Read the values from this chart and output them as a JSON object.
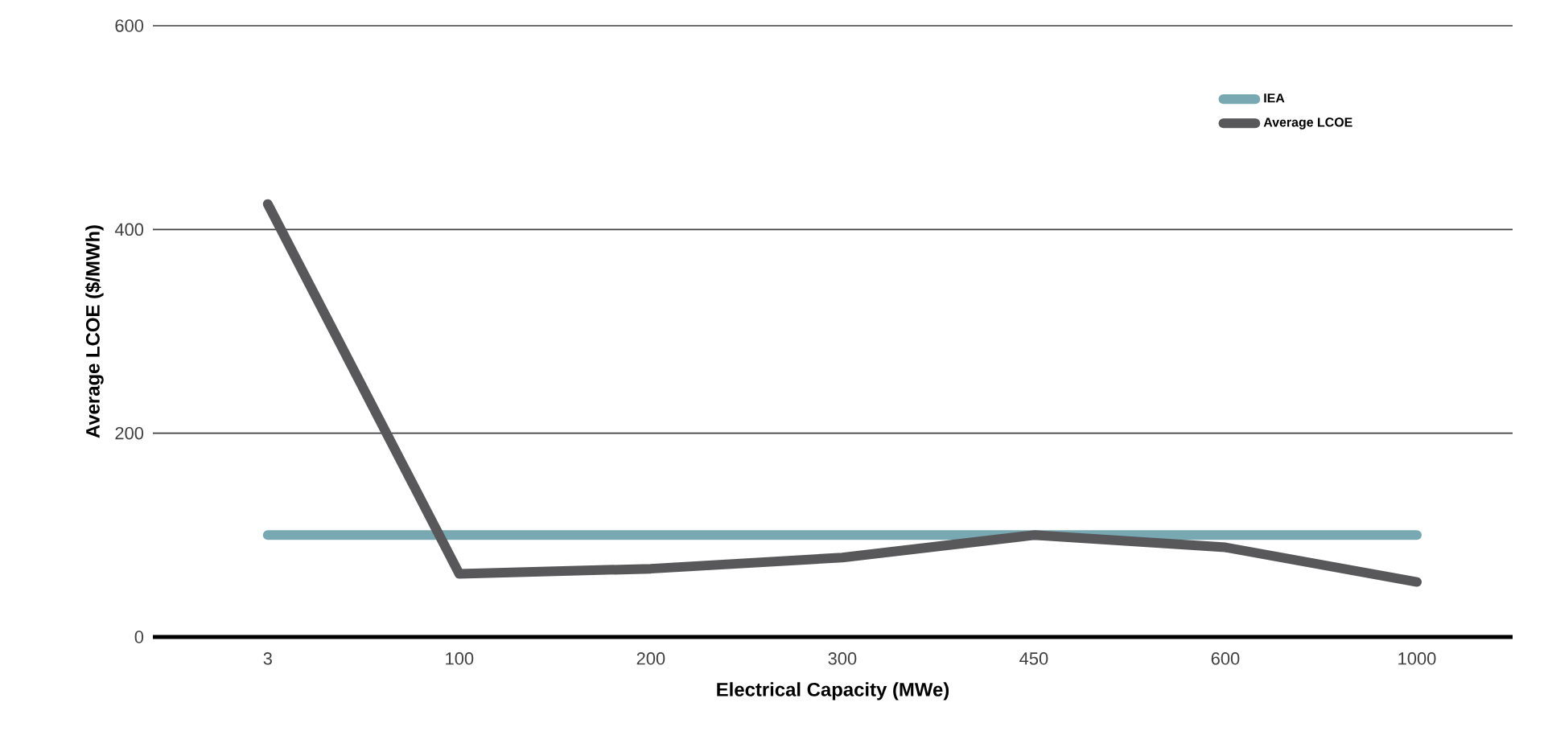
{
  "chart_data": {
    "type": "line",
    "xlabel": "Electrical Capacity (MWe)",
    "ylabel": "Average LCOE ($/MWh)",
    "categories": [
      "3",
      "100",
      "200",
      "300",
      "450",
      "600",
      "1000"
    ],
    "series": [
      {
        "name": "IEA",
        "color": "#78a9b3",
        "values": [
          100,
          100,
          100,
          100,
          100,
          100,
          100
        ]
      },
      {
        "name": "Average LCOE",
        "color": "#58585a",
        "values": [
          425,
          62,
          67,
          78,
          100,
          88,
          54
        ]
      }
    ],
    "ylim": [
      0,
      600
    ],
    "yticks": [
      0,
      200,
      400,
      600
    ],
    "grid": "y",
    "legend": "top right",
    "marker": "none",
    "line_style": "solid"
  }
}
